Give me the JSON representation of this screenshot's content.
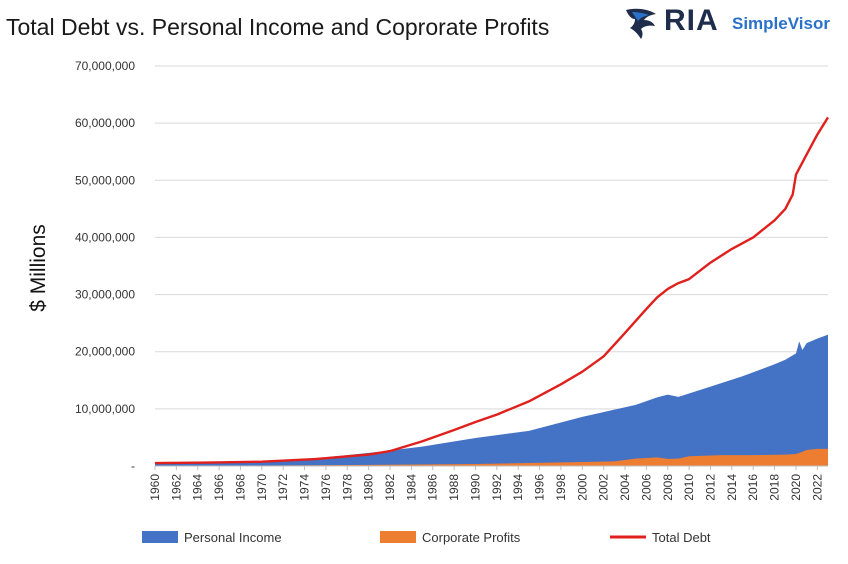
{
  "header": {
    "title": "Total Debt vs. Personal Income and Coprorate Profits"
  },
  "logo": {
    "brand": "RIA",
    "sub": "SimpleVisor",
    "colors": {
      "brand": "#1f2d4d",
      "sub": "#2a72c9"
    }
  },
  "chart_data": {
    "type": "area",
    "ylabel": "$ Millions",
    "xlabel": "",
    "xlim": [
      1960,
      2023
    ],
    "ylim": [
      0,
      70000000
    ],
    "y_ticks": [
      "-",
      "10,000,000",
      "20,000,000",
      "30,000,000",
      "40,000,000",
      "50,000,000",
      "60,000,000",
      "70,000,000"
    ],
    "x_ticks": [
      "1960",
      "1962",
      "1964",
      "1966",
      "1968",
      "1970",
      "1972",
      "1974",
      "1976",
      "1978",
      "1980",
      "1982",
      "1984",
      "1986",
      "1988",
      "1990",
      "1992",
      "1994",
      "1996",
      "1998",
      "2000",
      "2002",
      "2004",
      "2006",
      "2008",
      "2010",
      "2012",
      "2014",
      "2016",
      "2018",
      "2020",
      "2022"
    ],
    "grid": true,
    "legend_position": "bottom",
    "series": [
      {
        "name": "Personal Income",
        "kind": "area",
        "color": "#4472c4",
        "points": [
          [
            1960,
            410000
          ],
          [
            1965,
            540000
          ],
          [
            1970,
            840000
          ],
          [
            1975,
            1330000
          ],
          [
            1980,
            2300000
          ],
          [
            1985,
            3400000
          ],
          [
            1990,
            4900000
          ],
          [
            1995,
            6150000
          ],
          [
            2000,
            8600000
          ],
          [
            2005,
            10700000
          ],
          [
            2007,
            12000000
          ],
          [
            2008,
            12500000
          ],
          [
            2009,
            12100000
          ],
          [
            2012,
            13900000
          ],
          [
            2015,
            15700000
          ],
          [
            2018,
            17800000
          ],
          [
            2019,
            18600000
          ],
          [
            2020,
            19700000
          ],
          [
            2020.3,
            21800000
          ],
          [
            2020.6,
            20300000
          ],
          [
            2021,
            21500000
          ],
          [
            2022,
            22300000
          ],
          [
            2023,
            23000000
          ]
        ]
      },
      {
        "name": "Corporate Profits",
        "kind": "area",
        "color": "#ed7d31",
        "points": [
          [
            1960,
            50000
          ],
          [
            1970,
            80000
          ],
          [
            1980,
            200000
          ],
          [
            1990,
            350000
          ],
          [
            2000,
            700000
          ],
          [
            2003,
            800000
          ],
          [
            2005,
            1300000
          ],
          [
            2007,
            1500000
          ],
          [
            2008,
            1250000
          ],
          [
            2009,
            1300000
          ],
          [
            2010,
            1700000
          ],
          [
            2013,
            1900000
          ],
          [
            2016,
            1900000
          ],
          [
            2019,
            2000000
          ],
          [
            2020,
            2100000
          ],
          [
            2020.5,
            2400000
          ],
          [
            2021,
            2800000
          ],
          [
            2022,
            3000000
          ],
          [
            2023,
            3000000
          ]
        ]
      },
      {
        "name": "Total Debt",
        "kind": "line",
        "color": "#e0201c",
        "points": [
          [
            1960,
            500000
          ],
          [
            1965,
            600000
          ],
          [
            1970,
            750000
          ],
          [
            1975,
            1200000
          ],
          [
            1980,
            2000000
          ],
          [
            1982,
            2600000
          ],
          [
            1985,
            4300000
          ],
          [
            1988,
            6300000
          ],
          [
            1990,
            7700000
          ],
          [
            1992,
            9000000
          ],
          [
            1995,
            11300000
          ],
          [
            1998,
            14300000
          ],
          [
            2000,
            16500000
          ],
          [
            2002,
            19200000
          ],
          [
            2004,
            23300000
          ],
          [
            2006,
            27500000
          ],
          [
            2007,
            29500000
          ],
          [
            2008,
            31000000
          ],
          [
            2009,
            32000000
          ],
          [
            2010,
            32700000
          ],
          [
            2012,
            35600000
          ],
          [
            2014,
            38000000
          ],
          [
            2016,
            40000000
          ],
          [
            2018,
            43000000
          ],
          [
            2019,
            45000000
          ],
          [
            2019.7,
            47500000
          ],
          [
            2020,
            51000000
          ],
          [
            2021,
            54500000
          ],
          [
            2022,
            58000000
          ],
          [
            2023,
            61000000
          ]
        ]
      }
    ]
  }
}
